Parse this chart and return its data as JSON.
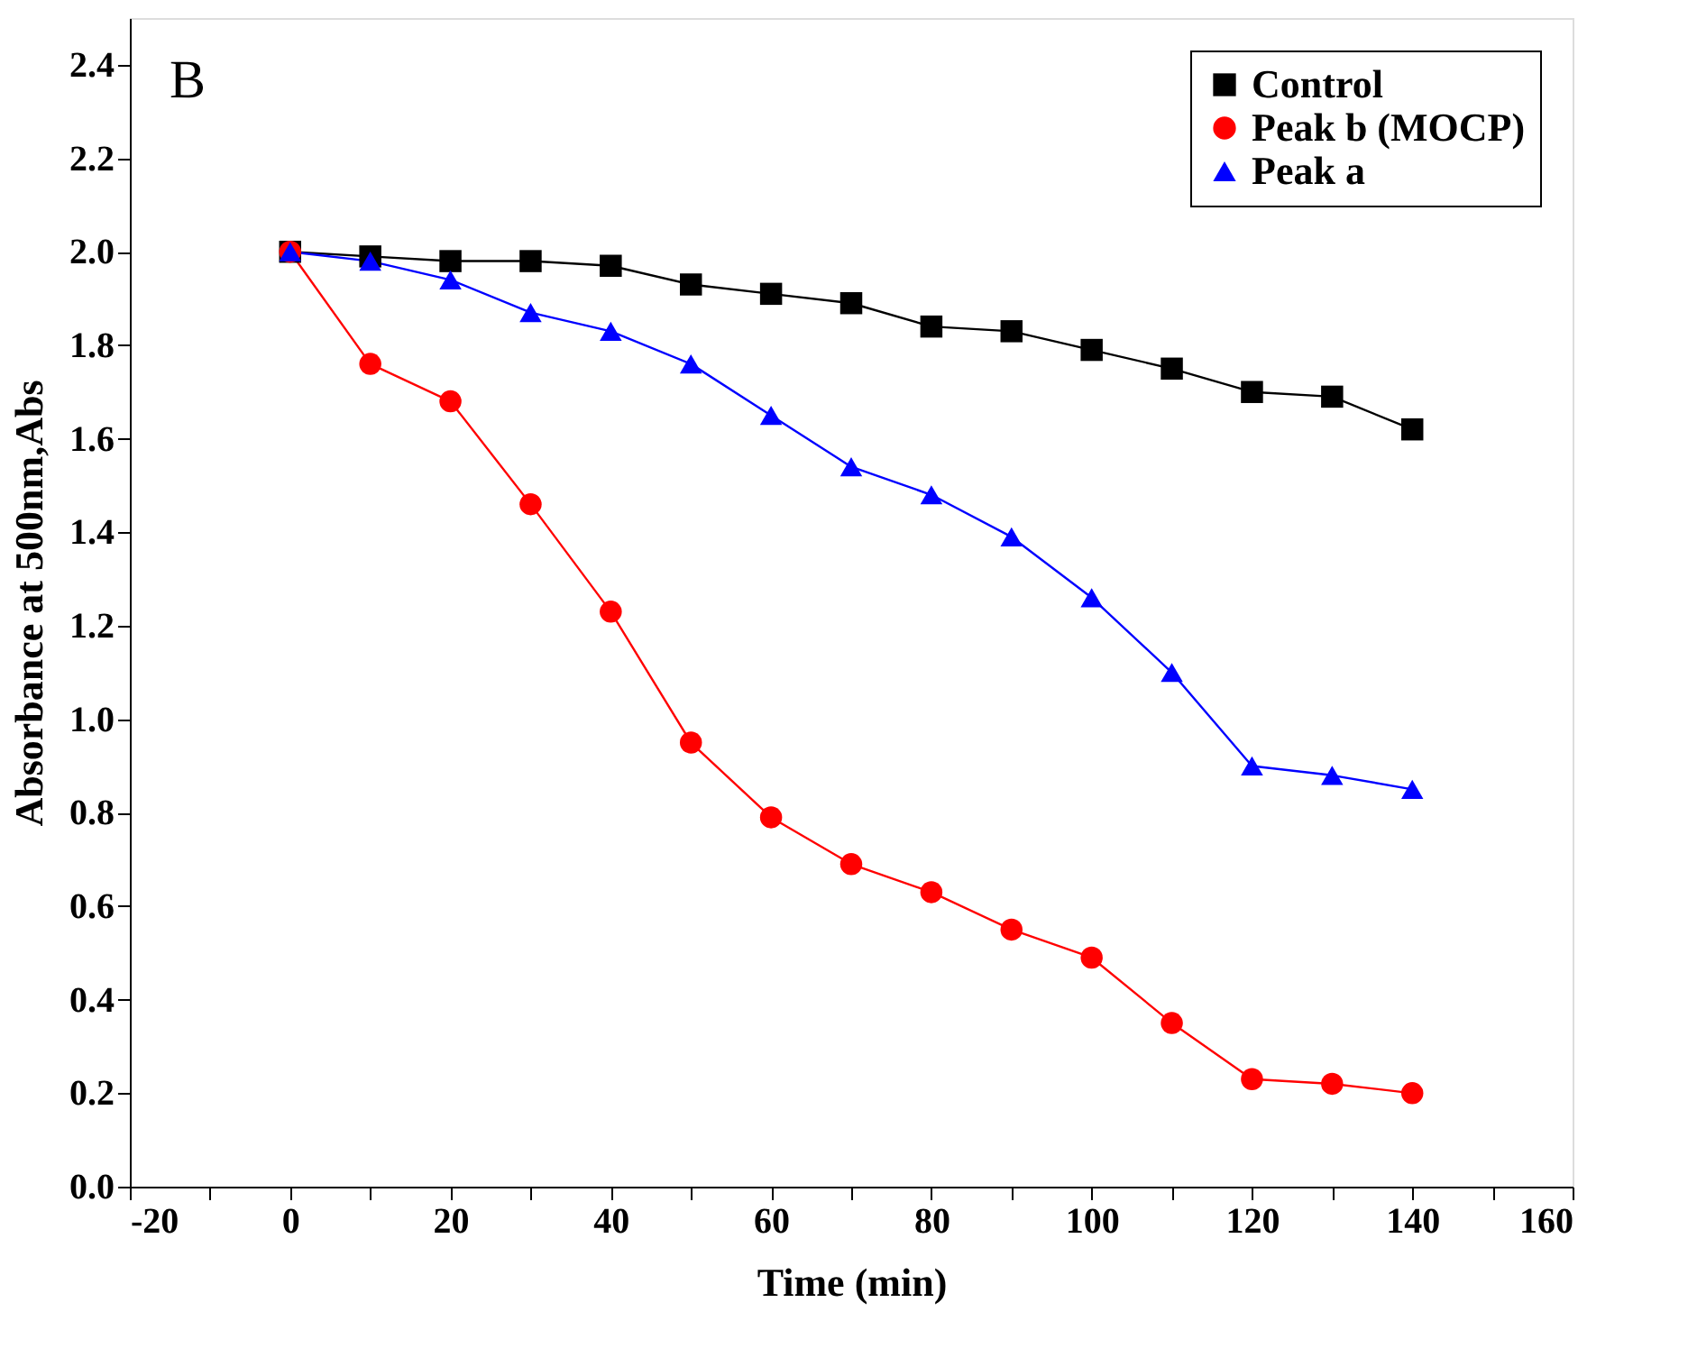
{
  "chart_data": {
    "type": "line",
    "xlabel": "Time (min)",
    "ylabel": "Absorbance at 500nm,Abs",
    "annotations": [
      "B"
    ],
    "x": [
      0,
      10,
      20,
      30,
      40,
      50,
      60,
      70,
      80,
      90,
      100,
      110,
      120,
      130,
      140
    ],
    "series": [
      {
        "name": "Control",
        "color": "#000000",
        "marker": "square",
        "values": [
          2.0,
          1.99,
          1.98,
          1.98,
          1.97,
          1.93,
          1.91,
          1.89,
          1.84,
          1.83,
          1.79,
          1.75,
          1.7,
          1.69,
          1.62
        ]
      },
      {
        "name": "Peak b (MOCP)",
        "color": "#ff0000",
        "marker": "circle",
        "values": [
          2.0,
          1.76,
          1.68,
          1.46,
          1.23,
          0.95,
          0.79,
          0.69,
          0.63,
          0.55,
          0.49,
          0.35,
          0.23,
          0.22,
          0.2
        ]
      },
      {
        "name": "Peak a",
        "color": "#0000ff",
        "marker": "triangle",
        "values": [
          2.0,
          1.98,
          1.94,
          1.87,
          1.83,
          1.76,
          1.65,
          1.54,
          1.48,
          1.39,
          1.26,
          1.1,
          0.9,
          0.88,
          0.85
        ]
      }
    ],
    "xlim": [
      -20,
      160
    ],
    "xticks": [
      -20,
      {
        "value": -10,
        "label": null
      },
      0,
      {
        "value": 10,
        "label": null
      },
      20,
      {
        "value": 30,
        "label": null
      },
      40,
      {
        "value": 50,
        "label": null
      },
      60,
      {
        "value": 70,
        "label": null
      },
      80,
      {
        "value": 90,
        "label": null
      },
      100,
      {
        "value": 110,
        "label": null
      },
      120,
      {
        "value": 130,
        "label": null
      },
      140,
      {
        "value": 150,
        "label": null
      },
      160
    ],
    "ylim": [
      0,
      2.5
    ],
    "yticks": [
      {
        "value": 0,
        "label": "0.0"
      },
      {
        "value": 0.2,
        "label": "0.2"
      },
      {
        "value": 0.4,
        "label": "0.4"
      },
      {
        "value": 0.6,
        "label": "0.6"
      },
      {
        "value": 0.8,
        "label": "0.8"
      },
      {
        "value": 1.0,
        "label": "1.0"
      },
      {
        "value": 1.2,
        "label": "1.2"
      },
      {
        "value": 1.4,
        "label": "1.4"
      },
      {
        "value": 1.6,
        "label": "1.6"
      },
      {
        "value": 1.8,
        "label": "1.8"
      },
      {
        "value": 2.0,
        "label": "2.0"
      },
      {
        "value": 2.2,
        "label": "2.2"
      },
      {
        "value": 2.4,
        "label": "2.4"
      }
    ],
    "grid": false,
    "legend": "top right",
    "line_style": "solid"
  }
}
